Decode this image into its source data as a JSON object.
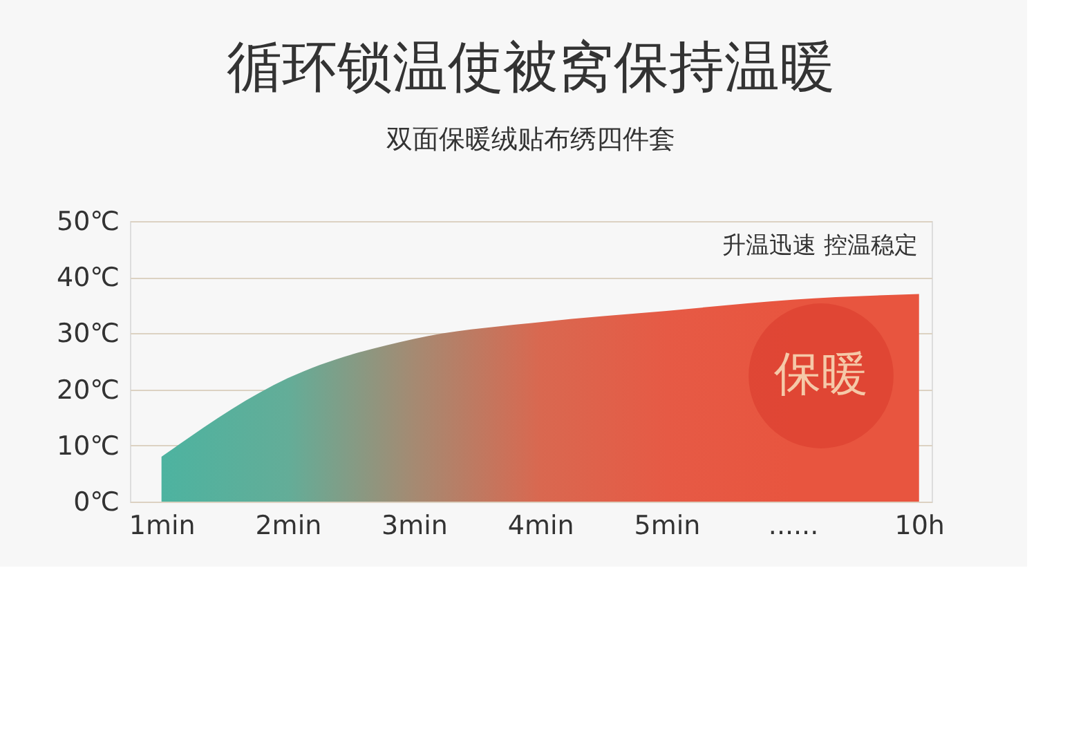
{
  "chart_data": {
    "type": "area",
    "title": "循环锁温使被窝保持温暖",
    "subtitle": "双面保暖绒贴布绣四件套",
    "categories": [
      "1min",
      "2min",
      "3min",
      "4min",
      "5min",
      "......",
      "10h"
    ],
    "values": [
      8,
      22,
      29,
      32,
      34,
      36,
      37
    ],
    "colors": [
      "#4db3a0",
      "#63ad98",
      "#a58a72",
      "#d96850",
      "#e65a45",
      "#e8553f",
      "#e8553f"
    ],
    "ylim": [
      0,
      50
    ],
    "yticks": [
      {
        "value": 0,
        "label": "0℃"
      },
      {
        "value": 10,
        "label": "10℃"
      },
      {
        "value": 20,
        "label": "20℃"
      },
      {
        "value": 30,
        "label": "30℃"
      },
      {
        "value": 40,
        "label": "40℃"
      },
      {
        "value": 50,
        "label": "50℃"
      }
    ],
    "grid": "y",
    "annotations": [
      "升温迅速 控温稳定",
      "保暖"
    ]
  }
}
